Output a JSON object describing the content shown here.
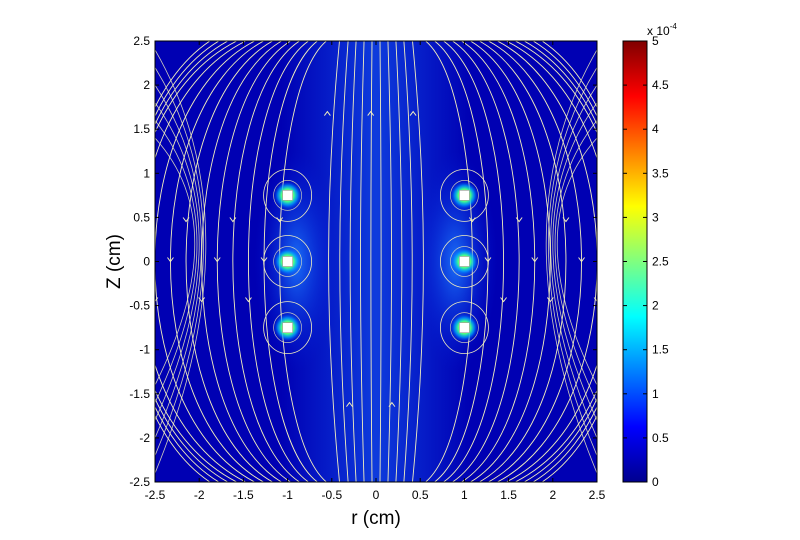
{
  "chart_data": {
    "type": "heatmap",
    "title": "",
    "xlabel": "r (cm)",
    "ylabel": "Z (cm)",
    "xlim": [
      -2.5,
      2.5
    ],
    "ylim": [
      -2.5,
      2.5
    ],
    "xticks": [
      "-2.5",
      "-2",
      "-1.5",
      "-1",
      "-0.5",
      "0",
      "0.5",
      "1",
      "1.5",
      "2",
      "2.5"
    ],
    "yticks": [
      "-2.5",
      "-2",
      "-1.5",
      "-1",
      "-0.5",
      "0",
      "0.5",
      "1",
      "1.5",
      "2",
      "2.5"
    ],
    "grid": false,
    "colormap": "jet",
    "colorbar": {
      "min": 0,
      "max": 5,
      "exponent_label": "x 10",
      "exponent": "-4",
      "ticks": [
        "0",
        "0.5",
        "1",
        "1.5",
        "2",
        "2.5",
        "3",
        "3.5",
        "4",
        "4.5",
        "5"
      ]
    },
    "background_level": 0.05,
    "coils": [
      {
        "r": -1,
        "z": 0.75
      },
      {
        "r": -1,
        "z": 0
      },
      {
        "r": -1,
        "z": -0.75
      },
      {
        "r": 1,
        "z": 0.75
      },
      {
        "r": 1,
        "z": 0
      },
      {
        "r": 1,
        "z": -0.75
      }
    ],
    "streamline_color": "#f2eebd",
    "streamline_direction": "upward along axis, returning downward outside"
  }
}
